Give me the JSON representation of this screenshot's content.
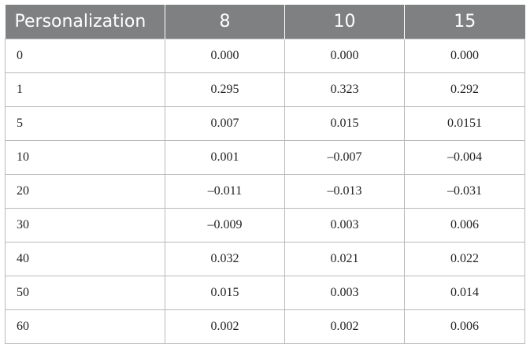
{
  "table": {
    "headers": [
      "Personalization",
      "8",
      "10",
      "15"
    ],
    "rows": [
      [
        "0",
        "0.000",
        "0.000",
        "0.000"
      ],
      [
        "1",
        "0.295",
        "0.323",
        "0.292"
      ],
      [
        "5",
        "0.007",
        "0.015",
        "0.0151"
      ],
      [
        "10",
        "0.001",
        "–0.007",
        "–0.004"
      ],
      [
        "20",
        "–0.011",
        "–0.013",
        "–0.031"
      ],
      [
        "30",
        "–0.009",
        "0.003",
        "0.006"
      ],
      [
        "40",
        "0.032",
        "0.021",
        "0.022"
      ],
      [
        "50",
        "0.015",
        "0.003",
        "0.014"
      ],
      [
        "60",
        "0.002",
        "0.002",
        "0.006"
      ]
    ]
  }
}
